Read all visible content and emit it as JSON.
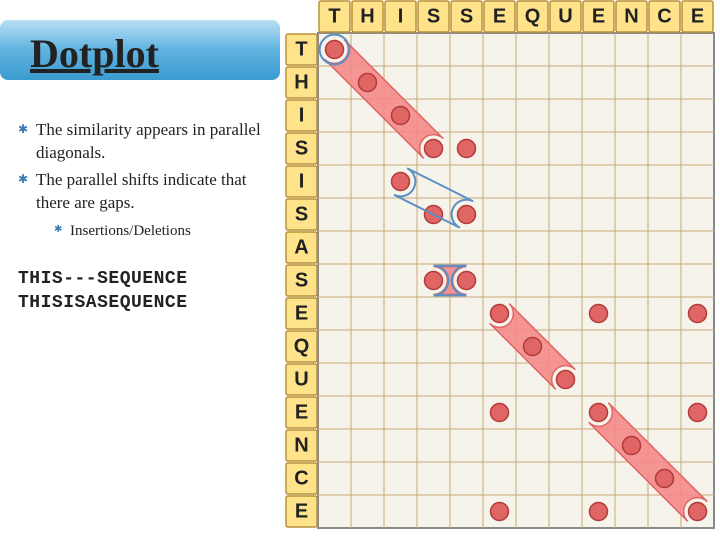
{
  "title": "Dotplot",
  "bullets": [
    {
      "text": "The similarity appears in parallel diagonals."
    },
    {
      "text": "The parallel shifts indicate that there are gaps.",
      "sub": [
        "Insertions/Deletions"
      ]
    }
  ],
  "alignment": {
    "line1": "THIS---SEQUENCE",
    "line2": "THISISASEQUENCE"
  },
  "dotplot": {
    "col_letters": [
      "T",
      "H",
      "I",
      "S",
      "S",
      "E",
      "Q",
      "U",
      "E",
      "N",
      "C",
      "E"
    ],
    "row_letters": [
      "T",
      "H",
      "I",
      "S",
      "I",
      "S",
      "A",
      "S",
      "E",
      "Q",
      "U",
      "E",
      "N",
      "C",
      "E"
    ],
    "cell_size": 33,
    "header_size": 33,
    "colors": {
      "grid_bg": "#f6f3ea",
      "grid_line": "#c8a97a",
      "frame": "#8a8a8a",
      "header_bg": "#ffe38a",
      "header_border": "#b8923a",
      "dot_fill": "#e06666",
      "dot_stroke": "#b33a3a",
      "ribbon_fill": "#f48a8a",
      "ribbon_stroke": "#e06666",
      "circle_outline": "#5a8fc8"
    },
    "dot_radius": 9,
    "dots": [
      [
        0,
        0
      ],
      [
        1,
        1
      ],
      [
        2,
        2
      ],
      [
        3,
        3
      ],
      [
        4,
        3
      ],
      [
        2,
        4
      ],
      [
        3,
        5
      ],
      [
        4,
        5
      ],
      [
        3,
        7
      ],
      [
        4,
        7
      ],
      [
        5,
        8
      ],
      [
        6,
        9
      ],
      [
        7,
        10
      ],
      [
        5,
        11
      ],
      [
        8,
        11
      ],
      [
        9,
        12
      ],
      [
        10,
        13
      ],
      [
        5,
        14
      ],
      [
        8,
        14
      ],
      [
        11,
        14
      ],
      [
        8,
        8
      ],
      [
        11,
        8
      ],
      [
        11,
        11
      ]
    ],
    "ribbons": [
      [
        [
          0,
          0
        ],
        [
          3,
          3
        ]
      ],
      [
        [
          3,
          7
        ],
        [
          4,
          7
        ]
      ],
      [
        [
          5,
          8
        ],
        [
          7,
          10
        ]
      ],
      [
        [
          8,
          11
        ],
        [
          11,
          14
        ]
      ]
    ],
    "outline_boxes": [
      [
        [
          0,
          0
        ],
        [
          0,
          0
        ]
      ],
      [
        [
          2,
          4
        ],
        [
          4,
          5
        ]
      ],
      [
        [
          3,
          7
        ],
        [
          4,
          7
        ]
      ]
    ]
  }
}
